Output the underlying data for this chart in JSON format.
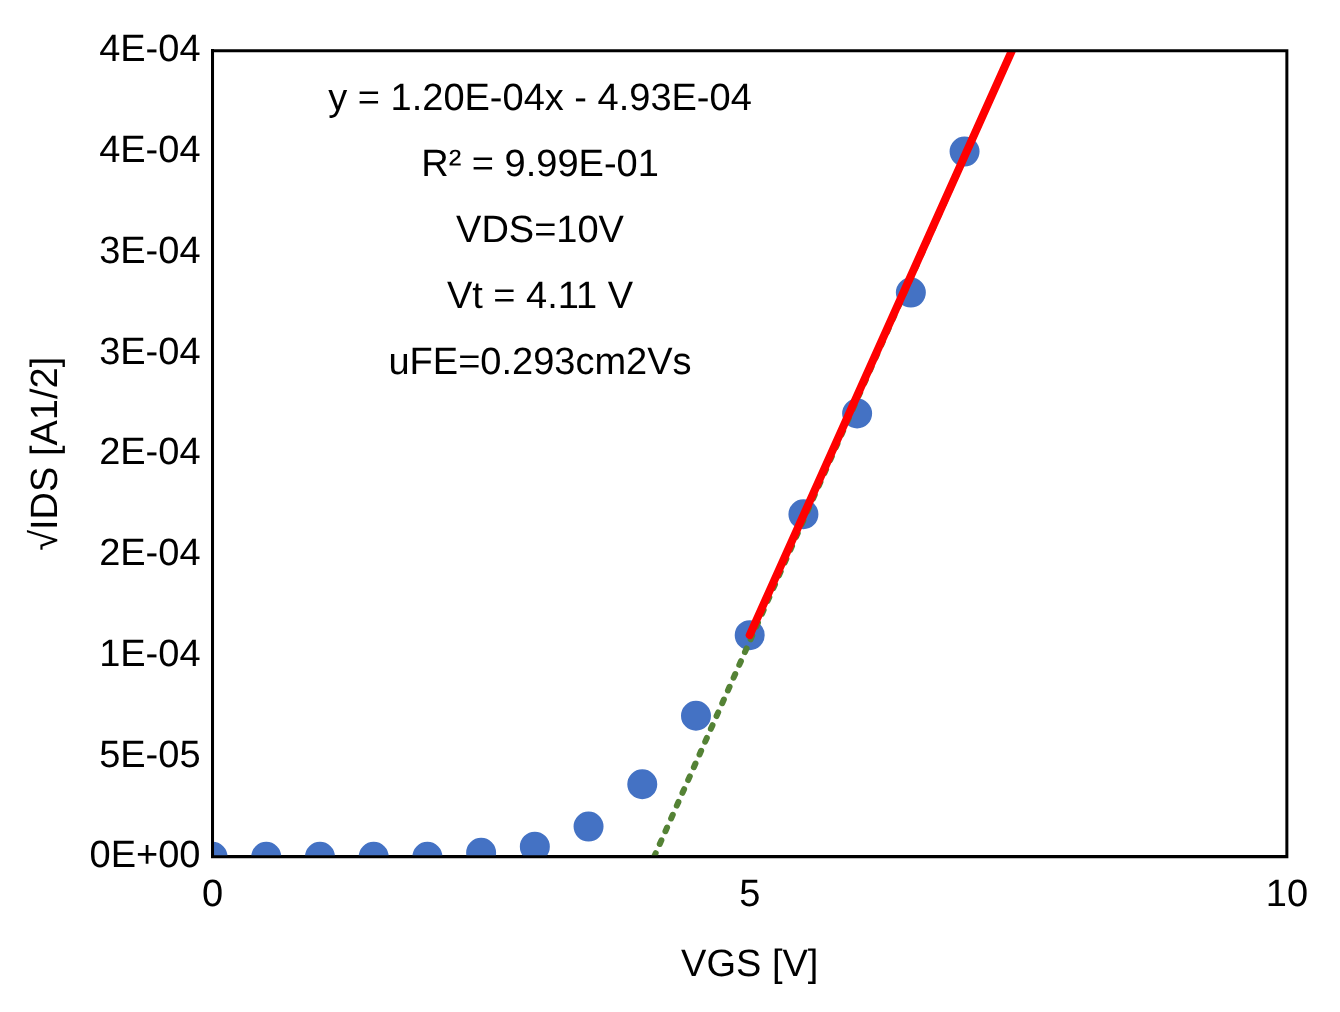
{
  "chart_data": {
    "type": "scatter",
    "xlabel": "VGS [V]",
    "ylabel": "√IDS [A1/2]",
    "annotations": [
      "y = 1.20E-04x - 4.93E-04",
      "R² = 9.99E-01",
      "VDS=10V",
      "Vt = 4.11 V",
      "uFE=0.293cm2Vs"
    ],
    "series": [
      {
        "color": "#4472c4",
        "marker": "circle",
        "x": [
          0,
          0.5,
          1,
          1.5,
          2,
          2.5,
          3,
          3.5,
          4,
          4.5,
          5,
          5.5,
          6,
          6.5,
          7
        ],
        "values": [
          0,
          0,
          0,
          0,
          0,
          2e-06,
          5e-06,
          1.5e-05,
          3.6e-05,
          7e-05,
          0.00011,
          0.00017,
          0.00022,
          0.00028,
          0.00035
        ]
      },
      {
        "type": "line",
        "color": "#ff0000",
        "line_style": "solid",
        "marker": "none",
        "x": [
          5,
          7.44
        ],
        "values": [
          0.00011,
          0.0004
        ]
      },
      {
        "type": "line",
        "color": "#548235",
        "line_style": "dotted",
        "marker": "none",
        "x": [
          4.11,
          7.44
        ],
        "values": [
          0,
          0.0004
        ]
      }
    ],
    "xlim": [
      0,
      10
    ],
    "xticks": [
      0,
      5,
      10
    ],
    "ylim": [
      0,
      0.0004
    ],
    "yticks": [
      {
        "value": 0,
        "label": "0E+00"
      },
      {
        "value": 5e-05,
        "label": "5E-05"
      },
      {
        "value": 0.0001,
        "label": "1E-04"
      },
      {
        "value": 0.00015,
        "label": "2E-04"
      },
      {
        "value": 0.0002,
        "label": "2E-04"
      },
      {
        "value": 0.00025,
        "label": "3E-04"
      },
      {
        "value": 0.0003,
        "label": "3E-04"
      },
      {
        "value": 0.00035,
        "label": "4E-04"
      },
      {
        "value": 0.0004,
        "label": "4E-04"
      }
    ],
    "grid": false,
    "legend": false
  }
}
